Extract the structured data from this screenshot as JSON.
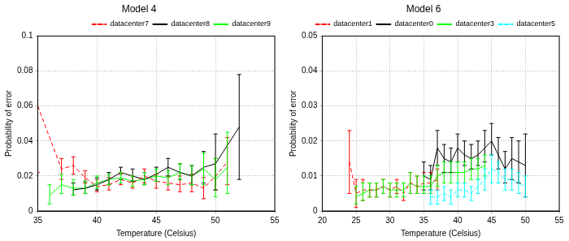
{
  "chart_data": [
    {
      "type": "line",
      "title": "Model 4",
      "x_label": "Temperature (Celsius)",
      "y_label": "Probability of error",
      "xlim": [
        35,
        55
      ],
      "xticks": [
        35,
        40,
        45,
        50,
        55
      ],
      "ylim": [
        0,
        0.1
      ],
      "yticks": [
        0,
        0.02,
        0.04,
        0.06,
        0.08,
        0.1
      ],
      "grid": true,
      "legend": "upper right",
      "series": [
        {
          "name": "datacenter7",
          "color": "#ff0000",
          "line_style": "dashed",
          "marker": "none",
          "x": [
            35,
            37,
            38,
            39,
            40,
            41,
            42,
            43,
            44,
            45,
            46,
            47,
            48,
            49,
            50,
            51
          ],
          "values": [
            0.06,
            0.024,
            0.026,
            0.019,
            0.014,
            0.015,
            0.018,
            0.016,
            0.02,
            0.017,
            0.016,
            0.015,
            0.016,
            0.013,
            0.02,
            0.028
          ],
          "error_low": [
            0.022,
            0.018,
            0.021,
            0.016,
            0.011,
            0.012,
            0.015,
            0.013,
            0.016,
            0.013,
            0.012,
            0.011,
            0.011,
            0.007,
            0.012,
            0.015
          ],
          "error_high": [
            0.1,
            0.03,
            0.031,
            0.023,
            0.018,
            0.019,
            0.021,
            0.02,
            0.024,
            0.021,
            0.02,
            0.02,
            0.021,
            0.019,
            0.03,
            0.042
          ]
        },
        {
          "name": "datacenter8",
          "color": "#000000",
          "line_style": "solid",
          "marker": "none",
          "x": [
            38,
            39,
            40,
            41,
            42,
            43,
            44,
            45,
            46,
            47,
            48,
            49,
            50,
            52
          ],
          "values": [
            0.012,
            0.013,
            0.015,
            0.018,
            0.022,
            0.02,
            0.018,
            0.021,
            0.025,
            0.022,
            0.02,
            0.025,
            0.027,
            0.048
          ],
          "error_low": [
            0.009,
            0.01,
            0.012,
            0.015,
            0.018,
            0.017,
            0.015,
            0.017,
            0.02,
            0.018,
            0.015,
            0.016,
            0.012,
            0.018
          ],
          "error_high": [
            0.016,
            0.017,
            0.019,
            0.022,
            0.025,
            0.024,
            0.022,
            0.025,
            0.03,
            0.027,
            0.026,
            0.034,
            0.044,
            0.078
          ]
        },
        {
          "name": "datacenter9",
          "color": "#00ff00",
          "line_style": "solid",
          "marker": "none",
          "x": [
            36,
            37,
            38,
            39,
            40,
            41,
            42,
            43,
            44,
            45,
            46,
            47,
            48,
            49,
            50,
            51
          ],
          "values": [
            0.009,
            0.015,
            0.013,
            0.013,
            0.016,
            0.018,
            0.019,
            0.017,
            0.018,
            0.02,
            0.019,
            0.022,
            0.02,
            0.024,
            0.018,
            0.025
          ],
          "error_low": [
            0.004,
            0.01,
            0.009,
            0.01,
            0.013,
            0.015,
            0.016,
            0.014,
            0.015,
            0.017,
            0.015,
            0.018,
            0.015,
            0.015,
            0.008,
            0.01
          ],
          "error_high": [
            0.015,
            0.021,
            0.018,
            0.017,
            0.02,
            0.021,
            0.022,
            0.02,
            0.022,
            0.024,
            0.023,
            0.027,
            0.026,
            0.033,
            0.03,
            0.045
          ]
        }
      ]
    },
    {
      "type": "line",
      "title": "Model 6",
      "x_label": "Temperature (Celsius)",
      "y_label": "Probability of error",
      "xlim": [
        20,
        55
      ],
      "xticks": [
        20,
        25,
        30,
        35,
        40,
        45,
        50,
        55
      ],
      "ylim": [
        0,
        0.05
      ],
      "yticks": [
        0,
        0.01,
        0.02,
        0.03,
        0.04,
        0.05
      ],
      "grid": true,
      "legend": "upper right",
      "series": [
        {
          "name": "datacenter1",
          "color": "#ff0000",
          "line_style": "dashed",
          "marker": "none",
          "x": [
            24,
            25,
            26,
            27,
            28,
            29,
            30,
            31,
            32,
            33,
            34,
            35,
            36,
            37
          ],
          "values": [
            0.014,
            0.005,
            0.006,
            0.006,
            0.006,
            0.007,
            0.006,
            0.007,
            0.005,
            0.008,
            0.007,
            0.008,
            0.008,
            0.009
          ],
          "error_low": [
            0.005,
            0.001,
            0.003,
            0.004,
            0.004,
            0.005,
            0.004,
            0.005,
            0.003,
            0.005,
            0.005,
            0.005,
            0.005,
            0.006
          ],
          "error_high": [
            0.023,
            0.009,
            0.009,
            0.008,
            0.008,
            0.009,
            0.008,
            0.009,
            0.008,
            0.011,
            0.01,
            0.011,
            0.011,
            0.012
          ]
        },
        {
          "name": "datacenter0",
          "color": "#000000",
          "line_style": "solid",
          "marker": "none",
          "x": [
            35,
            36,
            37,
            38,
            39,
            40,
            41,
            42,
            43,
            44,
            45,
            46,
            47,
            48,
            49,
            50
          ],
          "values": [
            0.01,
            0.009,
            0.018,
            0.015,
            0.014,
            0.018,
            0.016,
            0.015,
            0.016,
            0.018,
            0.02,
            0.016,
            0.012,
            0.015,
            0.014,
            0.013
          ],
          "error_low": [
            0.006,
            0.006,
            0.013,
            0.011,
            0.011,
            0.014,
            0.013,
            0.012,
            0.013,
            0.014,
            0.016,
            0.012,
            0.008,
            0.009,
            0.008,
            0.004
          ],
          "error_high": [
            0.014,
            0.013,
            0.023,
            0.019,
            0.018,
            0.022,
            0.02,
            0.019,
            0.02,
            0.023,
            0.025,
            0.021,
            0.017,
            0.021,
            0.02,
            0.022
          ]
        },
        {
          "name": "datacenter3",
          "color": "#00ff00",
          "line_style": "solid",
          "marker": "none",
          "x": [
            25,
            26,
            27,
            28,
            29,
            30,
            31,
            32,
            33,
            34,
            35,
            36,
            37,
            38,
            39,
            40,
            41,
            42,
            43,
            44
          ],
          "values": [
            0.004,
            0.005,
            0.006,
            0.006,
            0.007,
            0.006,
            0.006,
            0.006,
            0.008,
            0.007,
            0.007,
            0.007,
            0.01,
            0.011,
            0.011,
            0.011,
            0.011,
            0.012,
            0.012,
            0.013
          ],
          "error_low": [
            0.002,
            0.003,
            0.004,
            0.004,
            0.005,
            0.004,
            0.004,
            0.004,
            0.005,
            0.005,
            0.005,
            0.005,
            0.007,
            0.008,
            0.008,
            0.008,
            0.008,
            0.009,
            0.009,
            0.01
          ],
          "error_high": [
            0.007,
            0.008,
            0.008,
            0.008,
            0.009,
            0.008,
            0.008,
            0.008,
            0.011,
            0.01,
            0.01,
            0.01,
            0.013,
            0.014,
            0.014,
            0.014,
            0.014,
            0.015,
            0.015,
            0.016
          ]
        },
        {
          "name": "datacenter5",
          "color": "#00ffff",
          "line_style": "dashed",
          "marker": "none",
          "x": [
            36,
            37,
            38,
            39,
            40,
            41,
            42,
            43,
            44,
            45,
            46,
            47,
            48,
            49,
            50
          ],
          "values": [
            0.004,
            0.004,
            0.005,
            0.004,
            0.006,
            0.006,
            0.005,
            0.007,
            0.009,
            0.012,
            0.011,
            0.009,
            0.009,
            0.008,
            0.007
          ],
          "error_low": [
            0.002,
            0.002,
            0.003,
            0.002,
            0.004,
            0.004,
            0.003,
            0.005,
            0.006,
            0.008,
            0.008,
            0.006,
            0.006,
            0.005,
            0.004
          ],
          "error_high": [
            0.006,
            0.006,
            0.007,
            0.006,
            0.008,
            0.008,
            0.007,
            0.009,
            0.012,
            0.016,
            0.014,
            0.012,
            0.012,
            0.011,
            0.01
          ]
        }
      ]
    }
  ]
}
